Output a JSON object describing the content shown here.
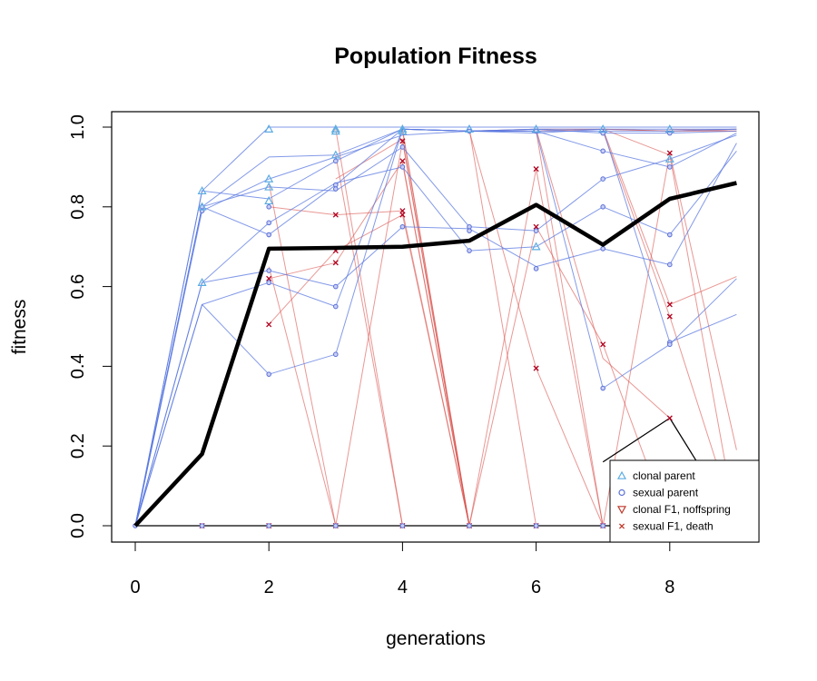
{
  "chart_data": {
    "type": "line",
    "title": "Population Fitness",
    "xlabel": "generations",
    "ylabel": "fitness",
    "xlim": [
      0,
      9
    ],
    "ylim": [
      0,
      1
    ],
    "x_ticks": [
      "0",
      "2",
      "4",
      "6",
      "8"
    ],
    "y_ticks": [
      "0.0",
      "0.2",
      "0.4",
      "0.6",
      "0.8",
      "1.0"
    ],
    "grid": false,
    "legend_position": "bottom-right",
    "legend": [
      {
        "label": "clonal parent",
        "marker": "triangle-up",
        "color": "#5DADE2"
      },
      {
        "label": "sexual parent",
        "marker": "circle",
        "color": "#5A6FD6"
      },
      {
        "label": "clonal F1, noffspring",
        "marker": "triangle-down",
        "color": "#C0392B"
      },
      {
        "label": "sexual F1, death",
        "marker": "x",
        "color": "#C0392B"
      }
    ],
    "mean_series": {
      "x": [
        0,
        1,
        2,
        3,
        4,
        5,
        6,
        7,
        8,
        9
      ],
      "y": [
        0.0,
        0.18,
        0.695,
        0.697,
        0.7,
        0.715,
        0.805,
        0.705,
        0.82,
        0.86
      ],
      "color": "#000000"
    },
    "baseline": {
      "x": [
        0,
        1,
        2,
        3,
        4,
        5,
        6,
        7,
        8,
        9
      ],
      "y": [
        0,
        0,
        0,
        0,
        0,
        0,
        0,
        0,
        0,
        0
      ],
      "color": "#000000"
    },
    "triangle_line": {
      "x": [
        7,
        8,
        9
      ],
      "y": [
        0.16,
        0.27,
        0.0
      ],
      "color": "#000000"
    },
    "blue_lineages": [
      {
        "x": [
          0,
          1,
          2,
          3,
          4,
          5,
          6,
          7,
          8,
          9
        ],
        "y": [
          0,
          0.84,
          1.0,
          1.0,
          1.0,
          1.0,
          1.0,
          1.0,
          1.0,
          1.0
        ]
      },
      {
        "x": [
          0,
          1,
          2,
          3,
          4,
          5,
          6,
          7,
          8,
          9
        ],
        "y": [
          0,
          0.8,
          0.925,
          0.93,
          0.995,
          0.99,
          0.995,
          0.985,
          0.985,
          0.99
        ]
      },
      {
        "x": [
          0,
          1,
          2,
          3,
          4,
          5,
          6,
          7,
          8,
          9
        ],
        "y": [
          0,
          0.79,
          0.87,
          0.925,
          0.98,
          0.99,
          0.99,
          0.94,
          0.9,
          0.985
        ]
      },
      {
        "x": [
          0,
          1,
          2,
          3,
          4,
          5,
          6,
          7,
          8,
          9
        ],
        "y": [
          0,
          0.8,
          0.85,
          0.84,
          0.95,
          0.75,
          0.74,
          0.87,
          0.92,
          0.98
        ]
      },
      {
        "x": [
          0,
          1,
          2,
          3,
          4,
          5,
          6,
          7,
          8,
          9
        ],
        "y": [
          0,
          0.61,
          0.76,
          0.86,
          0.9,
          0.69,
          0.7,
          0.8,
          0.73,
          0.94
        ]
      },
      {
        "x": [
          0,
          1,
          2,
          3,
          4,
          5,
          6,
          7,
          8,
          9
        ],
        "y": [
          0,
          0.61,
          0.64,
          0.6,
          0.75,
          0.745,
          0.65,
          0.695,
          0.655,
          0.96
        ]
      },
      {
        "x": [
          0,
          1,
          2,
          3,
          4,
          5,
          6,
          7,
          8,
          9
        ],
        "y": [
          0,
          0.555,
          0.38,
          0.43,
          0.995,
          0.99,
          0.99,
          0.345,
          0.455,
          0.62
        ]
      },
      {
        "x": [
          0,
          1,
          2,
          3,
          4,
          5,
          6,
          7,
          8,
          9
        ],
        "y": [
          0,
          0.555,
          0.61,
          0.55,
          0.995,
          0.99,
          0.985,
          0.995,
          0.46,
          0.53
        ]
      },
      {
        "x": [
          0,
          1,
          2,
          3,
          4,
          5,
          6,
          7,
          8,
          9
        ],
        "y": [
          0,
          0.8,
          0.73,
          0.855,
          0.995,
          0.99,
          0.995,
          0.995,
          0.995,
          0.995
        ]
      },
      {
        "x": [
          0,
          1,
          2,
          3,
          4,
          5,
          6,
          7,
          8,
          9
        ],
        "y": [
          0,
          0.84,
          0.82,
          0.915,
          0.995,
          0.99,
          0.99,
          0.99,
          0.99,
          0.995
        ]
      },
      {
        "x": [
          0,
          1,
          2,
          3,
          4,
          5,
          6,
          7,
          8,
          9
        ],
        "y": [
          0,
          0.0,
          0.0,
          0.0,
          0.0,
          0.0,
          0.0,
          0.0,
          0.0,
          0.0
        ]
      }
    ],
    "red_lineages": [
      {
        "x": [
          2,
          3,
          4,
          5,
          6,
          7,
          8,
          9
        ],
        "y": [
          0.86,
          0.0,
          0.0,
          0.0,
          0.0,
          0.0,
          0.0,
          0.0
        ]
      },
      {
        "x": [
          2,
          3,
          4,
          5,
          6,
          7,
          8,
          9
        ],
        "y": [
          0.8,
          0.78,
          0.79,
          0.0,
          0.0,
          0.0,
          0.0,
          0.0
        ]
      },
      {
        "x": [
          2,
          3,
          4,
          5,
          6,
          7,
          8,
          9
        ],
        "y": [
          0.62,
          0.66,
          0.915,
          0.0,
          0.0,
          0.0,
          0.0,
          0.0
        ]
      },
      {
        "x": [
          2,
          3,
          4,
          5,
          6,
          7,
          8,
          9
        ],
        "y": [
          0.505,
          0.69,
          0.78,
          0.0,
          0.0,
          0.0,
          0.0,
          0.0
        ]
      },
      {
        "x": [
          2,
          3,
          4,
          5,
          6,
          7,
          8,
          9
        ],
        "y": [
          0.65,
          0.0,
          0.965,
          0.0,
          0.0,
          0.0,
          0.0,
          0.0
        ]
      },
      {
        "x": [
          3,
          4,
          5,
          6,
          7,
          8,
          9
        ],
        "y": [
          0.87,
          0.97,
          0.0,
          0.895,
          0.0,
          0.0,
          0.0
        ]
      },
      {
        "x": [
          4,
          5,
          6,
          7,
          8,
          9
        ],
        "y": [
          0.91,
          0.0,
          0.75,
          0.455,
          0.0,
          0.0
        ]
      },
      {
        "x": [
          5,
          6,
          7,
          8,
          9
        ],
        "y": [
          0.99,
          0.395,
          0.0,
          0.0,
          0.0
        ]
      },
      {
        "x": [
          5,
          6,
          7,
          8,
          9
        ],
        "y": [
          0.995,
          0.0,
          0.0,
          0.0,
          0.0
        ]
      },
      {
        "x": [
          6,
          7,
          8,
          9
        ],
        "y": [
          0.99,
          0.0,
          0.935,
          0.19
        ]
      },
      {
        "x": [
          6,
          7,
          8,
          9
        ],
        "y": [
          0.995,
          0.42,
          0.27,
          0.0
        ]
      },
      {
        "x": [
          7,
          8,
          9
        ],
        "y": [
          0.995,
          0.555,
          0.625
        ]
      },
      {
        "x": [
          7,
          8,
          9
        ],
        "y": [
          0.99,
          0.525,
          0.0
        ]
      },
      {
        "x": [
          7,
          8,
          9
        ],
        "y": [
          0.995,
          0.93,
          0.0
        ]
      },
      {
        "x": [
          8,
          9
        ],
        "y": [
          0.995,
          0.99
        ]
      },
      {
        "x": [
          3,
          4,
          5,
          6,
          7,
          8,
          9
        ],
        "y": [
          0.995,
          0.0,
          0.0,
          0.0,
          0.0,
          0.0,
          0.0
        ]
      },
      {
        "x": [
          3,
          4,
          5,
          6,
          7,
          8,
          9
        ],
        "y": [
          0.93,
          0.0,
          0.0,
          0.0,
          0.0,
          0.0,
          0.0
        ]
      },
      {
        "x": [
          4,
          5,
          6,
          7,
          8,
          9
        ],
        "y": [
          0.995,
          0.0,
          0.0,
          0.0,
          0.0,
          0.0
        ]
      },
      {
        "x": [
          4,
          5,
          6,
          7,
          8,
          9
        ],
        "y": [
          0.99,
          0.0,
          0.0,
          0.0,
          0.0,
          0.0
        ]
      },
      {
        "x": [
          5,
          6,
          7,
          8,
          9
        ],
        "y": [
          0.99,
          0.995,
          0.995,
          0.99,
          0.995
        ]
      },
      {
        "x": [
          6,
          7,
          8,
          9
        ],
        "y": [
          0.99,
          0.995,
          0.99,
          0.99
        ]
      }
    ],
    "clonal_parent_points": [
      {
        "x": 1,
        "y": 0.84
      },
      {
        "x": 1,
        "y": 0.8
      },
      {
        "x": 1,
        "y": 0.61
      },
      {
        "x": 2,
        "y": 0.995
      },
      {
        "x": 2,
        "y": 0.87
      },
      {
        "x": 2,
        "y": 0.85
      },
      {
        "x": 2,
        "y": 0.815
      },
      {
        "x": 3,
        "y": 0.995
      },
      {
        "x": 3,
        "y": 0.99
      },
      {
        "x": 3,
        "y": 0.93
      },
      {
        "x": 4,
        "y": 0.995
      },
      {
        "x": 4,
        "y": 0.99
      },
      {
        "x": 5,
        "y": 0.995
      },
      {
        "x": 6,
        "y": 0.995
      },
      {
        "x": 6,
        "y": 0.7
      },
      {
        "x": 7,
        "y": 0.995
      },
      {
        "x": 8,
        "y": 0.995
      },
      {
        "x": 8,
        "y": 0.92
      }
    ],
    "sexual_parent_points": [
      {
        "x": 0,
        "y": 0.0
      },
      {
        "x": 1,
        "y": 0.0
      },
      {
        "x": 1,
        "y": 0.8
      },
      {
        "x": 1,
        "y": 0.79
      },
      {
        "x": 2,
        "y": 0.8
      },
      {
        "x": 2,
        "y": 0.76
      },
      {
        "x": 2,
        "y": 0.73
      },
      {
        "x": 2,
        "y": 0.64
      },
      {
        "x": 2,
        "y": 0.61
      },
      {
        "x": 2,
        "y": 0.38
      },
      {
        "x": 2,
        "y": 0.0
      },
      {
        "x": 3,
        "y": 0.915
      },
      {
        "x": 3,
        "y": 0.855
      },
      {
        "x": 3,
        "y": 0.845
      },
      {
        "x": 3,
        "y": 0.6
      },
      {
        "x": 3,
        "y": 0.55
      },
      {
        "x": 3,
        "y": 0.43
      },
      {
        "x": 3,
        "y": 0.0
      },
      {
        "x": 4,
        "y": 0.95
      },
      {
        "x": 4,
        "y": 0.9
      },
      {
        "x": 4,
        "y": 0.75
      },
      {
        "x": 4,
        "y": 0.0
      },
      {
        "x": 5,
        "y": 0.99
      },
      {
        "x": 5,
        "y": 0.75
      },
      {
        "x": 5,
        "y": 0.74
      },
      {
        "x": 5,
        "y": 0.69
      },
      {
        "x": 5,
        "y": 0.0
      },
      {
        "x": 6,
        "y": 0.99
      },
      {
        "x": 6,
        "y": 0.74
      },
      {
        "x": 6,
        "y": 0.645
      },
      {
        "x": 6,
        "y": 0.0
      },
      {
        "x": 7,
        "y": 0.985
      },
      {
        "x": 7,
        "y": 0.94
      },
      {
        "x": 7,
        "y": 0.87
      },
      {
        "x": 7,
        "y": 0.8
      },
      {
        "x": 7,
        "y": 0.695
      },
      {
        "x": 7,
        "y": 0.345
      },
      {
        "x": 7,
        "y": 0.0
      },
      {
        "x": 8,
        "y": 0.985
      },
      {
        "x": 8,
        "y": 0.9
      },
      {
        "x": 8,
        "y": 0.73
      },
      {
        "x": 8,
        "y": 0.655
      },
      {
        "x": 8,
        "y": 0.46
      },
      {
        "x": 8,
        "y": 0.455
      }
    ],
    "sexual_f1_death_points": [
      {
        "x": 1,
        "y": 0.0
      },
      {
        "x": 2,
        "y": 0.62
      },
      {
        "x": 2,
        "y": 0.505
      },
      {
        "x": 2,
        "y": 0.0
      },
      {
        "x": 3,
        "y": 0.78
      },
      {
        "x": 3,
        "y": 0.69
      },
      {
        "x": 3,
        "y": 0.66
      },
      {
        "x": 3,
        "y": 0.0
      },
      {
        "x": 4,
        "y": 0.965
      },
      {
        "x": 4,
        "y": 0.915
      },
      {
        "x": 4,
        "y": 0.79
      },
      {
        "x": 4,
        "y": 0.78
      },
      {
        "x": 4,
        "y": 0.0
      },
      {
        "x": 5,
        "y": 0.0
      },
      {
        "x": 6,
        "y": 0.895
      },
      {
        "x": 6,
        "y": 0.75
      },
      {
        "x": 6,
        "y": 0.395
      },
      {
        "x": 6,
        "y": 0.0
      },
      {
        "x": 7,
        "y": 0.455
      },
      {
        "x": 7,
        "y": 0.0
      },
      {
        "x": 8,
        "y": 0.935
      },
      {
        "x": 8,
        "y": 0.555
      },
      {
        "x": 8,
        "y": 0.525
      },
      {
        "x": 8,
        "y": 0.27
      }
    ]
  }
}
